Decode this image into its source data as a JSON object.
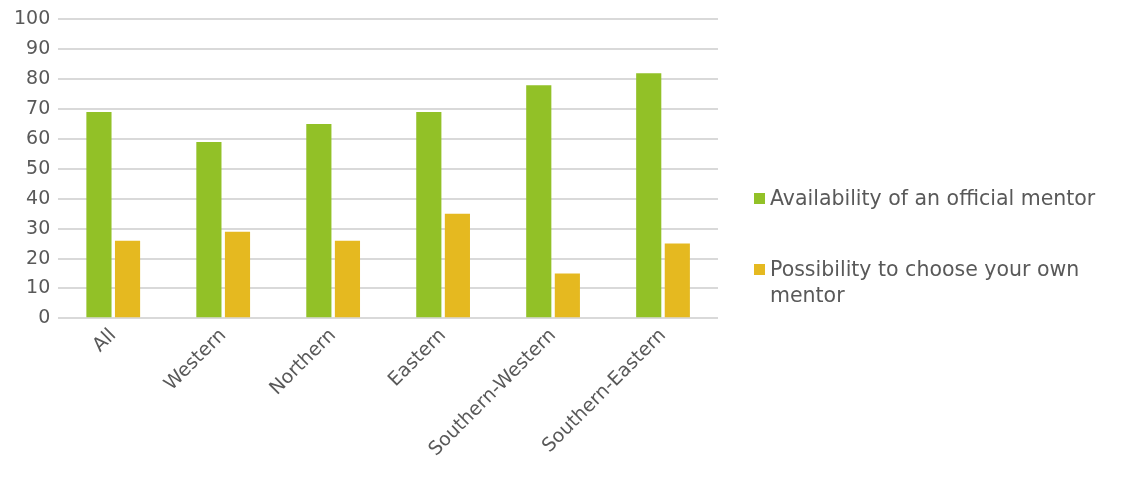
{
  "chart_data": {
    "type": "bar",
    "categories": [
      "All",
      "Western",
      "Northern",
      "Eastern",
      "Southern-Western",
      "Southern-Eastern"
    ],
    "series": [
      {
        "name": "Availability of an official mentor",
        "color": "#92c127",
        "values": [
          69,
          59,
          65,
          69,
          78,
          82
        ]
      },
      {
        "name": "Possibility to choose your own mentor",
        "color": "#e5b920",
        "values": [
          26,
          29,
          26,
          35,
          15,
          25
        ]
      }
    ],
    "ylim": [
      0,
      100
    ],
    "yticks": [
      0,
      10,
      20,
      30,
      40,
      50,
      60,
      70,
      80,
      90,
      100
    ],
    "grid": "y",
    "legend": "right"
  }
}
